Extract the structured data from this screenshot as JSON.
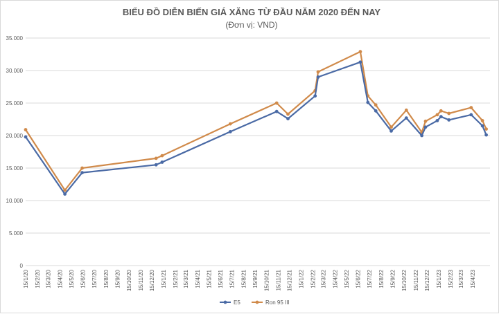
{
  "chart_data": {
    "type": "line",
    "title": "BIỂU ĐỒ DIỄN BIẾN GIÁ XĂNG TỪ ĐẦU NĂM 2020 ĐẾN NAY",
    "subtitle": "(Đơn vị: VND)",
    "xlabel": "",
    "ylabel": "",
    "ylim": [
      0,
      35000
    ],
    "yticks": [
      0,
      5000,
      10000,
      15000,
      20000,
      25000,
      30000,
      35000
    ],
    "ytick_labels": [
      "0",
      "5.000",
      "10.000",
      "15.000",
      "20.000",
      "25.000",
      "30.000",
      "35.000"
    ],
    "x_date_range": [
      "2020-01-15",
      "2023-05-31"
    ],
    "x_tick_labels": [
      "15/1/20",
      "15/2/20",
      "15/3/20",
      "15/4/20",
      "15/5/20",
      "15/6/20",
      "15/7/20",
      "15/8/20",
      "15/9/20",
      "15/10/20",
      "15/11/20",
      "15/12/20",
      "15/1/21",
      "15/2/21",
      "15/3/21",
      "15/4/21",
      "15/5/21",
      "15/6/21",
      "15/7/21",
      "15/8/21",
      "15/9/21",
      "15/10/21",
      "15/11/21",
      "15/12/21",
      "15/1/22",
      "15/2/22",
      "15/3/22",
      "15/4/22",
      "15/5/22",
      "15/6/22",
      "15/7/22",
      "15/8/22",
      "15/9/22",
      "15/10/22",
      "15/11/22",
      "15/12/22",
      "15/1/23",
      "15/2/23",
      "15/3/23",
      "15/4/23"
    ],
    "grid": true,
    "legend_position": "bottom",
    "series": [
      {
        "name": "E5",
        "color": "#4a6aa5",
        "points": [
          [
            "2020-01-15",
            19800
          ],
          [
            "2020-04-28",
            11000
          ],
          [
            "2020-06-13",
            14300
          ],
          [
            "2020-12-26",
            15500
          ],
          [
            "2021-01-11",
            15900
          ],
          [
            "2021-07-11",
            20600
          ],
          [
            "2021-11-11",
            23700
          ],
          [
            "2021-12-11",
            22600
          ],
          [
            "2022-02-21",
            26100
          ],
          [
            "2022-03-01",
            29000
          ],
          [
            "2022-06-21",
            31300
          ],
          [
            "2022-07-11",
            25100
          ],
          [
            "2022-08-01",
            23800
          ],
          [
            "2022-09-11",
            20700
          ],
          [
            "2022-10-21",
            22700
          ],
          [
            "2022-12-01",
            20000
          ],
          [
            "2022-12-11",
            21300
          ],
          [
            "2023-01-11",
            22300
          ],
          [
            "2023-01-21",
            22900
          ],
          [
            "2023-02-11",
            22400
          ],
          [
            "2023-04-11",
            23200
          ],
          [
            "2023-05-11",
            21500
          ],
          [
            "2023-05-21",
            20100
          ]
        ]
      },
      {
        "name": "Ron 95 III",
        "color": "#d08a4a",
        "points": [
          [
            "2020-01-15",
            20900
          ],
          [
            "2020-04-28",
            11600
          ],
          [
            "2020-06-13",
            15000
          ],
          [
            "2020-12-26",
            16500
          ],
          [
            "2021-01-11",
            16900
          ],
          [
            "2021-07-11",
            21800
          ],
          [
            "2021-11-11",
            25000
          ],
          [
            "2021-12-11",
            23300
          ],
          [
            "2022-02-21",
            26900
          ],
          [
            "2022-03-01",
            29800
          ],
          [
            "2022-06-21",
            32900
          ],
          [
            "2022-07-11",
            26100
          ],
          [
            "2022-08-01",
            24700
          ],
          [
            "2022-09-11",
            21300
          ],
          [
            "2022-10-21",
            23900
          ],
          [
            "2022-12-01",
            20500
          ],
          [
            "2022-12-11",
            22200
          ],
          [
            "2023-01-11",
            23200
          ],
          [
            "2023-01-21",
            23800
          ],
          [
            "2023-02-11",
            23400
          ],
          [
            "2023-04-11",
            24300
          ],
          [
            "2023-05-11",
            22300
          ],
          [
            "2023-05-21",
            21000
          ]
        ]
      }
    ]
  }
}
